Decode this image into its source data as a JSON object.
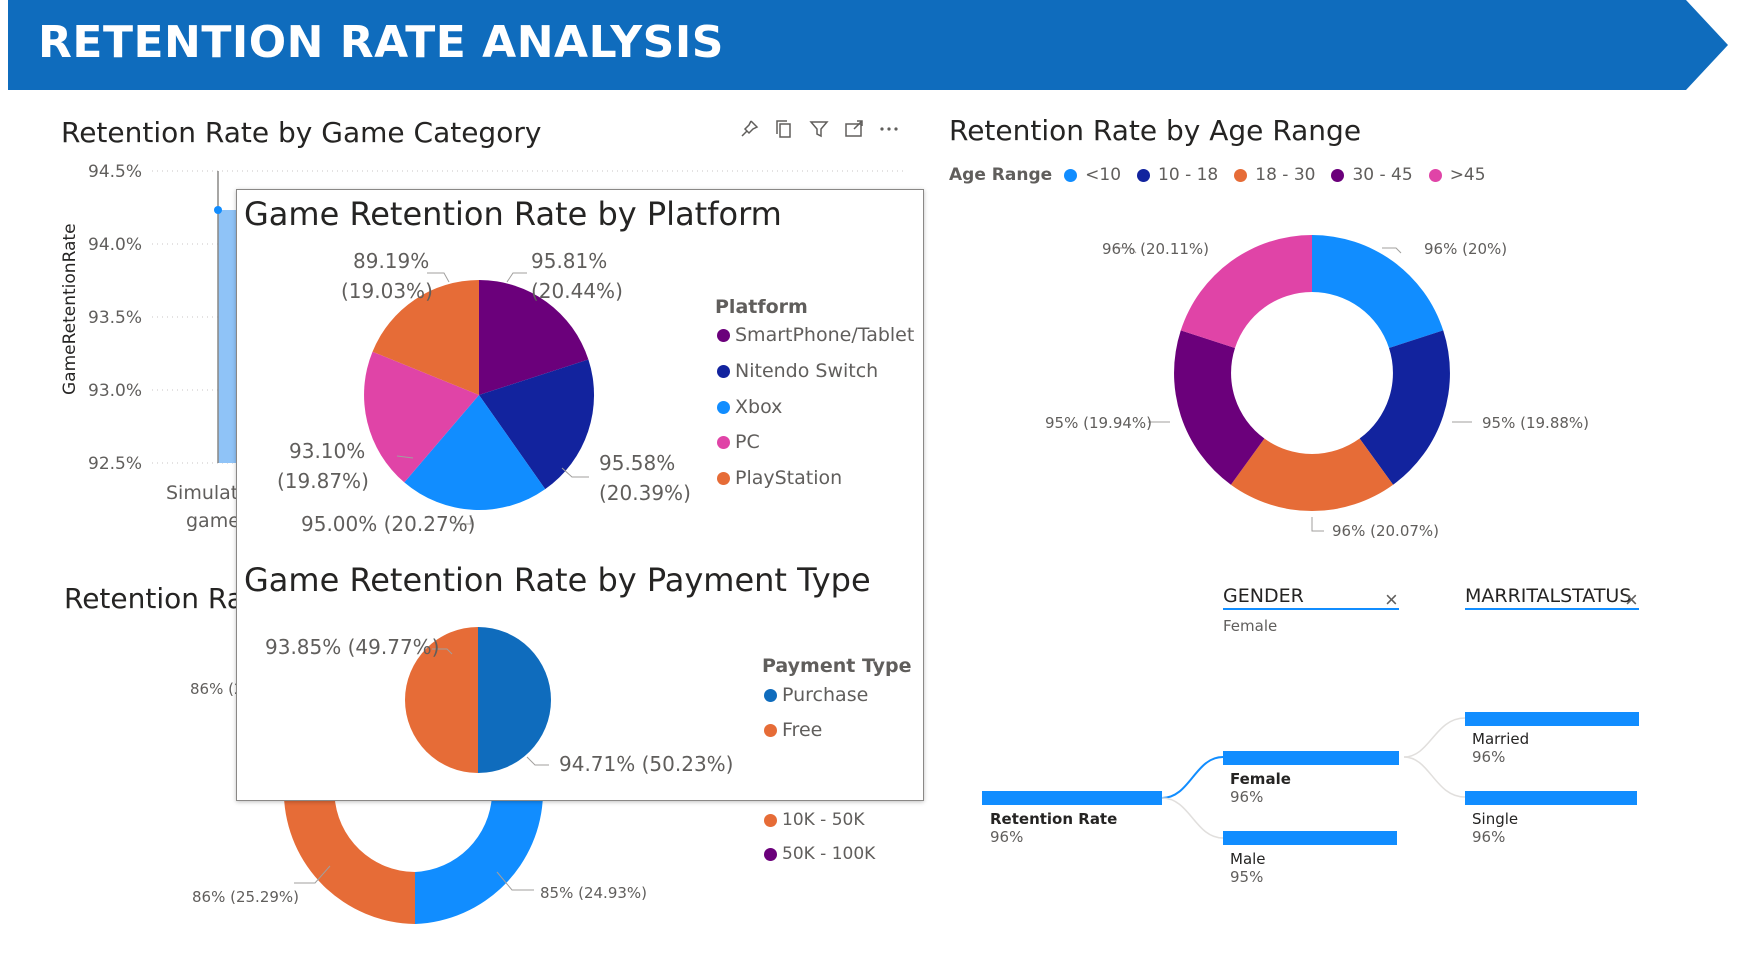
{
  "banner": {
    "title": "RETENTION RATE ANALYSIS",
    "color": "#0f6cbd"
  },
  "game_category": {
    "title": "Retention Rate by Game Category",
    "y_axis_label": "GameRetentionRate",
    "y_ticks": [
      "94.5%",
      "94.0%",
      "93.5%",
      "93.0%",
      "92.5%"
    ],
    "x_label_partial_1": "Simulat",
    "x_label_partial_2": "game"
  },
  "toolbar": {
    "icons": [
      "pin-icon",
      "copy-icon",
      "filter-icon",
      "focus-mode-icon",
      "more-options-icon"
    ]
  },
  "income": {
    "title_partial": "Retention Ra",
    "labels": {
      "left_top": "86% (2",
      "bottom_left": "86% (25.29%)",
      "bottom_right": "85% (24.93%)"
    },
    "legend": [
      {
        "label": "10K - 50K",
        "color": "#e66c37"
      },
      {
        "label": "50K - 100K",
        "color": "#6b007b"
      }
    ]
  },
  "tooltip": {
    "platform": {
      "title": "Game Retention Rate by Platform",
      "legend_title": "Platform",
      "legend": [
        {
          "label": "SmartPhone/Tablet",
          "color": "#6b007b"
        },
        {
          "label": "Nitendo Switch",
          "color": "#12239e"
        },
        {
          "label": "Xbox",
          "color": "#118dff"
        },
        {
          "label": "PC",
          "color": "#e044a7"
        },
        {
          "label": "PlayStation",
          "color": "#e66c37"
        }
      ],
      "labels": {
        "smartphone_line1": "95.81%",
        "smartphone_line2": "(20.44%)",
        "nintendo_line1": "95.58%",
        "nintendo_line2": "(20.39%)",
        "xbox": "95.00% (20.27%)",
        "pc_line1": "93.10%",
        "pc_line2": "(19.87%)",
        "playstation_line1": "89.19%",
        "playstation_line2": "(19.03%)"
      }
    },
    "payment": {
      "title": "Game Retention Rate by Payment Type",
      "legend_title": "Payment Type",
      "legend": [
        {
          "label": "Purchase",
          "color": "#0f6cbd"
        },
        {
          "label": "Free",
          "color": "#e66c37"
        }
      ],
      "labels": {
        "free": "93.85% (49.77%)",
        "purchase": "94.71% (50.23%)"
      }
    }
  },
  "age_range": {
    "title": "Retention Rate by Age Range",
    "legend_title": "Age Range",
    "legend": [
      {
        "label": "<10",
        "color": "#118dff"
      },
      {
        "label": "10 - 18",
        "color": "#12239e"
      },
      {
        "label": "18 - 30",
        "color": "#e66c37"
      },
      {
        "label": "30 - 45",
        "color": "#6b007b"
      },
      {
        "label": ">45",
        "color": "#e044a7"
      }
    ],
    "labels": {
      "lt10": "96% (20%)",
      "r10_18": "95% (19.88%)",
      "r18_30": "96% (20.07%)",
      "r30_45": "95% (19.94%)",
      "gt45": "96% (20.11%)"
    }
  },
  "decomposition": {
    "gender_header": "GENDER",
    "gender_filter": "Female",
    "marital_header": "MARRITALSTATUS",
    "close_glyph": "×",
    "root": {
      "label": "Retention Rate",
      "value": "96%"
    },
    "female": {
      "label": "Female",
      "value": "96%"
    },
    "male": {
      "label": "Male",
      "value": "95%"
    },
    "married": {
      "label": "Married",
      "value": "96%"
    },
    "single": {
      "label": "Single",
      "value": "96%"
    }
  },
  "chart_data": [
    {
      "type": "pie",
      "title": "Game Retention Rate by Platform",
      "categories": [
        "SmartPhone/Tablet",
        "Nitendo Switch",
        "Xbox",
        "PC",
        "PlayStation"
      ],
      "values": [
        95.81,
        95.58,
        95.0,
        93.1,
        89.19
      ],
      "shares": [
        20.44,
        20.39,
        20.27,
        19.87,
        19.03
      ],
      "legend_position": "right"
    },
    {
      "type": "pie",
      "title": "Game Retention Rate by Payment Type",
      "categories": [
        "Purchase",
        "Free"
      ],
      "values": [
        94.71,
        93.85
      ],
      "shares": [
        50.23,
        49.77
      ],
      "legend_position": "right"
    },
    {
      "type": "pie",
      "title": "Retention Rate by Age Range",
      "categories": [
        "<10",
        "10 - 18",
        "18 - 30",
        "30 - 45",
        ">45"
      ],
      "values": [
        96,
        95,
        96,
        95,
        96
      ],
      "shares": [
        20.0,
        19.88,
        20.07,
        19.94,
        20.11
      ],
      "legend_position": "top"
    }
  ]
}
